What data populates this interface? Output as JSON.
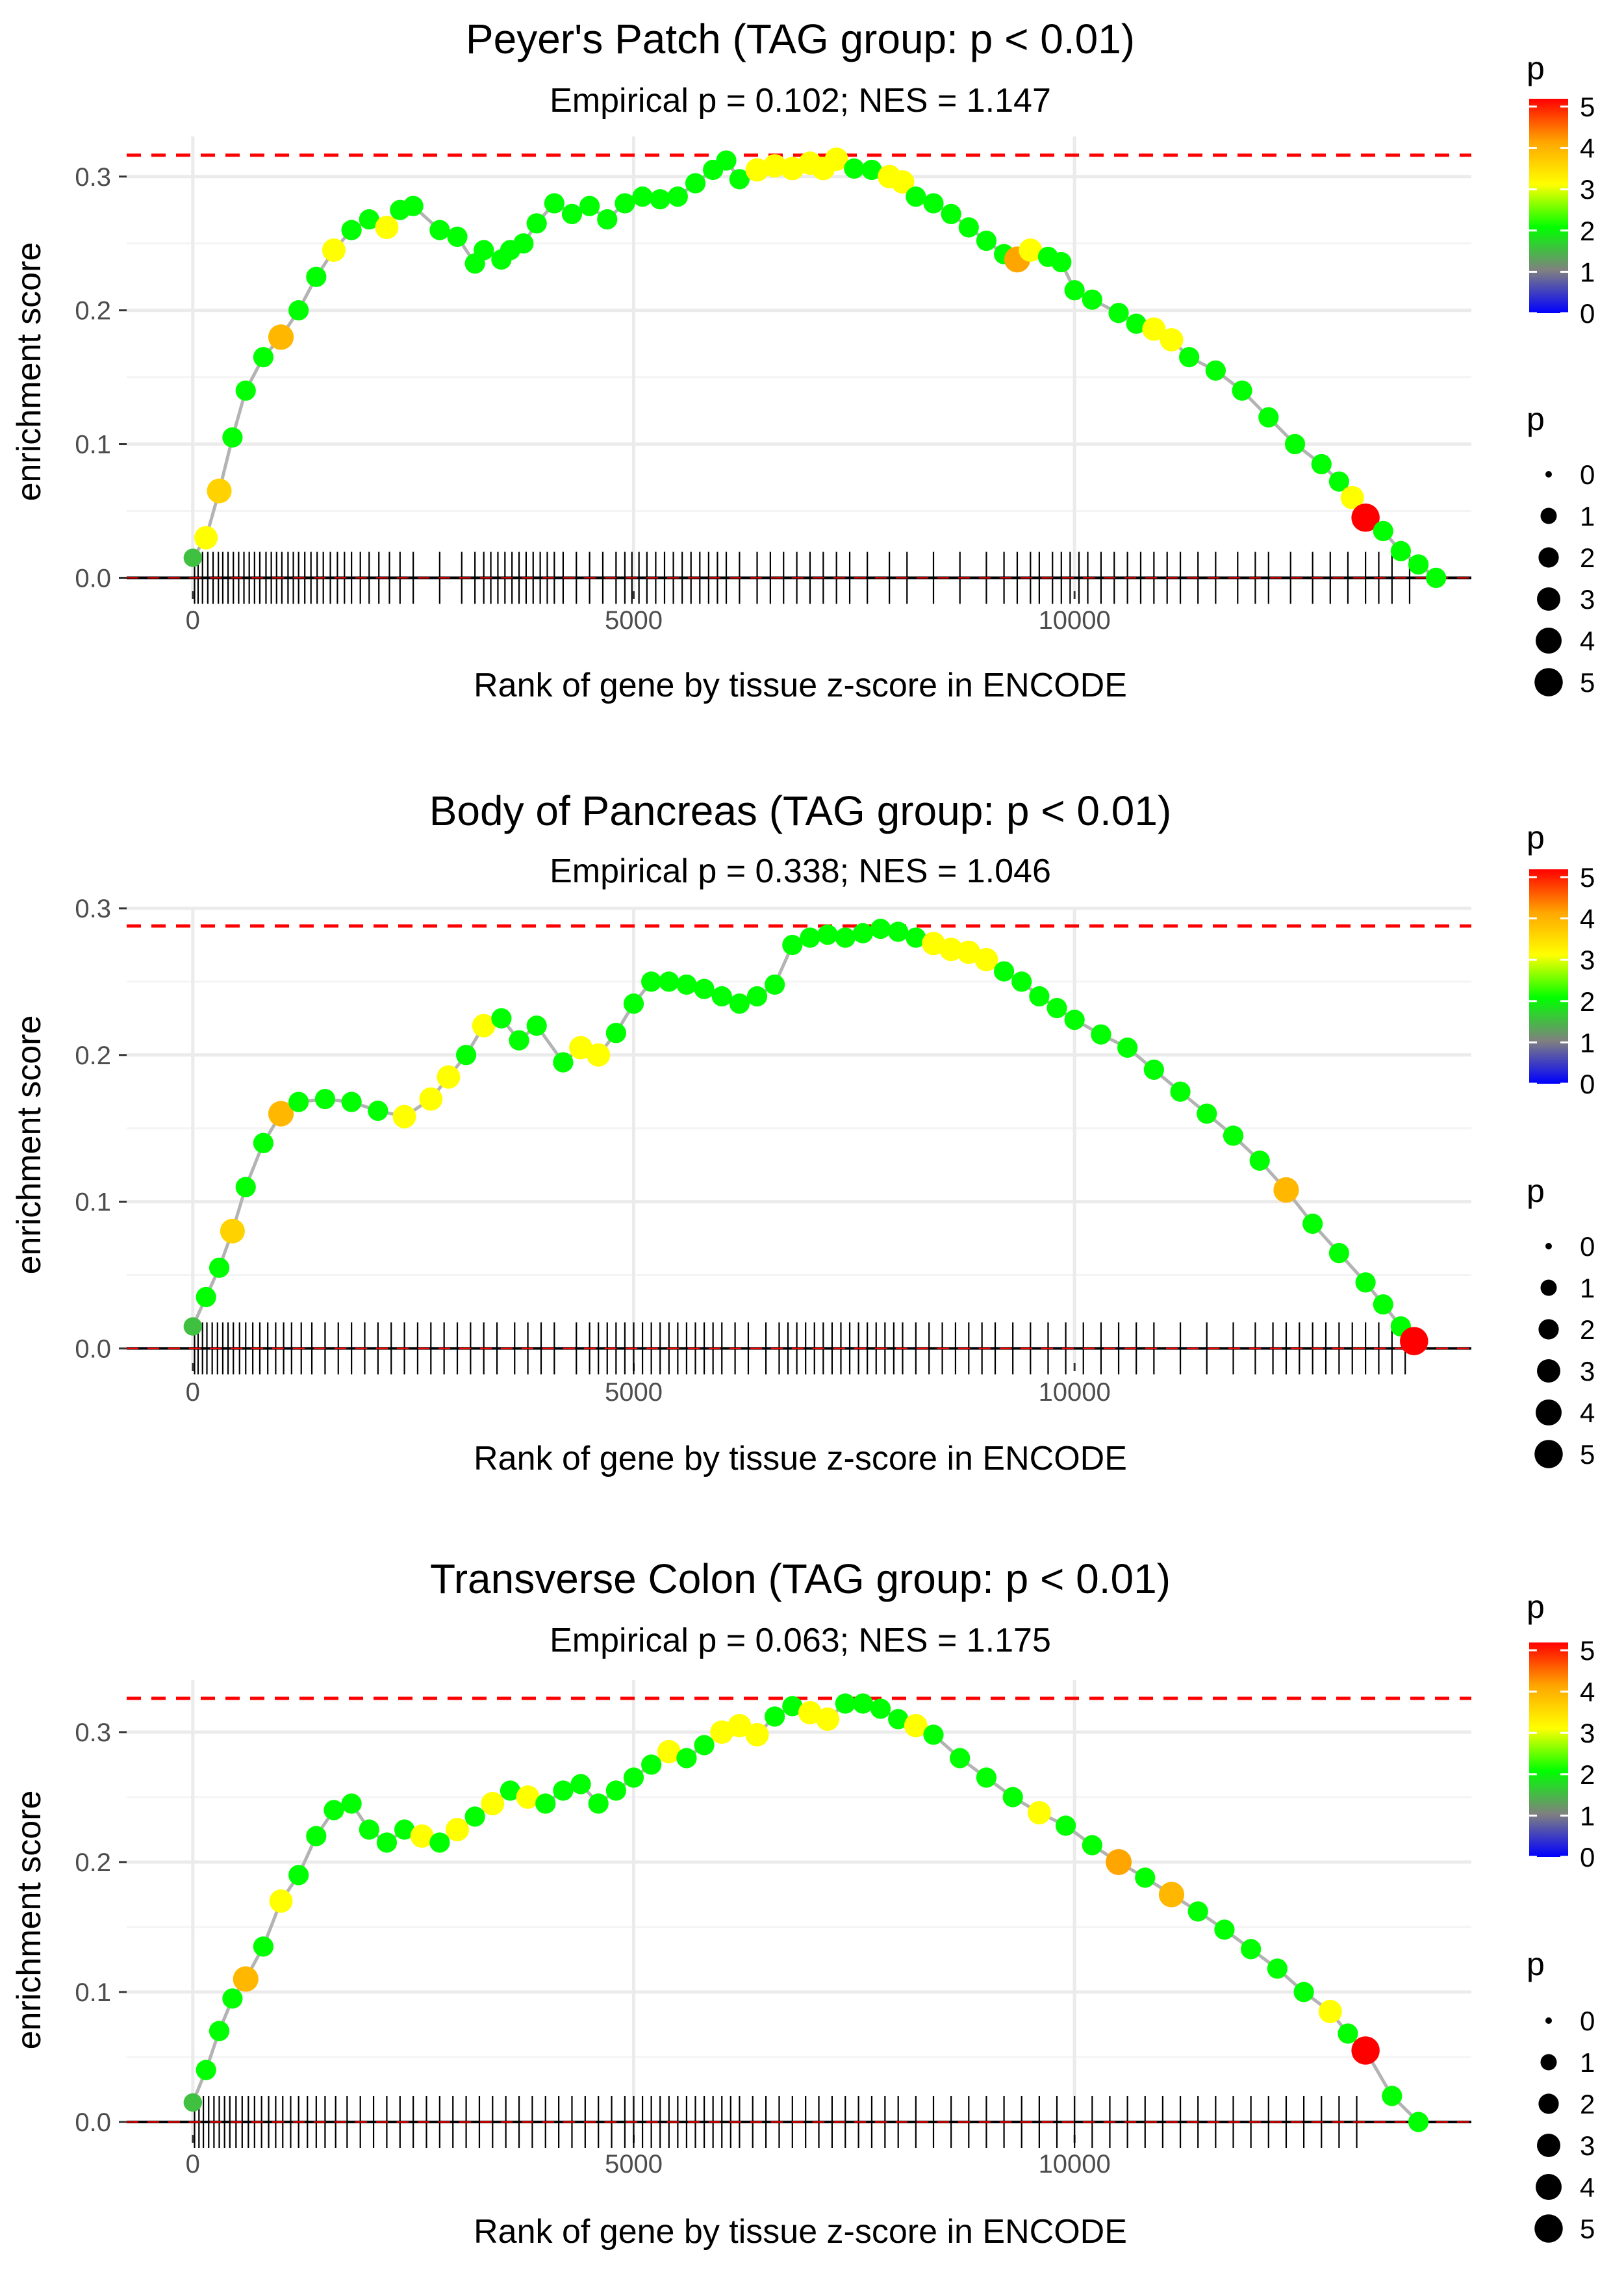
{
  "figure": {
    "xlabel": "Rank of gene by tissue z-score in ENCODE",
    "ylabel": "enrichment score",
    "color_legend": {
      "title": "p",
      "ticks": [
        "0",
        "1",
        "2",
        "3",
        "4",
        "5"
      ],
      "stops": [
        "#0000ff",
        "#808080",
        "#00ff00",
        "#ffff00",
        "#ffa500",
        "#ff0000"
      ]
    },
    "size_legend": {
      "title": "p",
      "labels": [
        "0",
        "1",
        "2",
        "3",
        "4",
        "5"
      ]
    },
    "colors": {
      "line": "#b3b3b3",
      "threshold": "#ff0000",
      "rug": "#000000",
      "grid": "#ebebeb"
    }
  },
  "chart_data": [
    {
      "type": "line",
      "title": "Peyer's Patch (TAG group: p < 0.01)",
      "subtitle": "Empirical p = 0.102; NES = 1.147",
      "xlabel": "Rank of gene by tissue z-score in ENCODE",
      "ylabel": "enrichment score",
      "xlim": [
        -750,
        14500
      ],
      "ylim": [
        -0.01,
        0.33
      ],
      "xticks": [
        0,
        5000,
        10000
      ],
      "xtick_labels": [
        "0",
        "5000",
        "10000"
      ],
      "yticks": [
        0.0,
        0.1,
        0.2,
        0.3
      ],
      "ytick_labels": [
        "0.0",
        "0.1",
        "0.2",
        "0.3"
      ],
      "max_es": 0.316,
      "x": [
        0,
        150,
        300,
        450,
        600,
        800,
        1000,
        1200,
        1400,
        1600,
        1800,
        2000,
        2200,
        2350,
        2500,
        2800,
        3000,
        3200,
        3300,
        3500,
        3600,
        3750,
        3900,
        4100,
        4300,
        4500,
        4700,
        4900,
        5100,
        5300,
        5500,
        5700,
        5900,
        6050,
        6200,
        6400,
        6600,
        6800,
        7000,
        7150,
        7300,
        7500,
        7700,
        7900,
        8050,
        8200,
        8400,
        8600,
        8800,
        9000,
        9200,
        9350,
        9500,
        9700,
        9850,
        10000,
        10200,
        10500,
        10700,
        10900,
        11100,
        11300,
        11600,
        11900,
        12200,
        12500,
        12800,
        13000,
        13150,
        13300,
        13500,
        13700,
        13900,
        14100
      ],
      "es": [
        0.015,
        0.03,
        0.065,
        0.105,
        0.14,
        0.165,
        0.18,
        0.2,
        0.225,
        0.245,
        0.26,
        0.268,
        0.262,
        0.275,
        0.278,
        0.26,
        0.255,
        0.235,
        0.245,
        0.238,
        0.245,
        0.25,
        0.265,
        0.28,
        0.272,
        0.278,
        0.268,
        0.28,
        0.285,
        0.283,
        0.285,
        0.295,
        0.305,
        0.312,
        0.298,
        0.305,
        0.308,
        0.306,
        0.31,
        0.306,
        0.313,
        0.306,
        0.305,
        0.3,
        0.296,
        0.285,
        0.28,
        0.272,
        0.262,
        0.252,
        0.242,
        0.238,
        0.245,
        0.24,
        0.236,
        0.215,
        0.208,
        0.198,
        0.19,
        0.186,
        0.178,
        0.165,
        0.155,
        0.14,
        0.12,
        0.1,
        0.085,
        0.072,
        0.06,
        0.045,
        0.035,
        0.02,
        0.01,
        0.0
      ],
      "p": [
        1.5,
        3.0,
        3.5,
        2.0,
        2.0,
        2.0,
        3.8,
        2.0,
        2.0,
        3.0,
        2.0,
        2.0,
        3.0,
        2.0,
        2.0,
        2.0,
        2.0,
        2.0,
        2.0,
        2.0,
        2.0,
        2.0,
        2.0,
        2.0,
        2.0,
        2.0,
        2.0,
        2.0,
        2.0,
        2.0,
        2.0,
        2.0,
        2.0,
        2.0,
        2.0,
        3.0,
        3.0,
        3.0,
        3.0,
        3.0,
        3.0,
        2.0,
        2.0,
        3.0,
        3.0,
        2.0,
        2.0,
        2.0,
        2.0,
        2.0,
        2.0,
        4.0,
        3.0,
        2.0,
        2.0,
        2.0,
        2.0,
        2.0,
        2.0,
        3.0,
        3.0,
        2.0,
        2.0,
        2.0,
        2.0,
        2.0,
        2.0,
        2.0,
        3.0,
        5.0,
        2.0,
        2.0,
        2.0,
        2.0
      ],
      "rug": [
        20,
        60,
        110,
        170,
        230,
        290,
        340,
        400,
        460,
        520,
        580,
        640,
        700,
        760,
        830,
        890,
        950,
        1010,
        1080,
        1140,
        1200,
        1270,
        1340,
        1410,
        1480,
        1560,
        1640,
        1720,
        1800,
        1900,
        2000,
        2110,
        2230,
        2350,
        2500,
        2800,
        3050,
        3200,
        3300,
        3380,
        3460,
        3540,
        3620,
        3700,
        3780,
        3860,
        3940,
        4020,
        4100,
        4200,
        4350,
        4500,
        4650,
        4800,
        4900,
        4980,
        5060,
        5150,
        5250,
        5350,
        5450,
        5550,
        5650,
        5750,
        5850,
        5950,
        6050,
        6200,
        6400,
        6550,
        6700,
        6850,
        7000,
        7150,
        7300,
        7450,
        7650,
        7900,
        8100,
        8400,
        8700,
        9000,
        9200,
        9350,
        9500,
        9600,
        9750,
        9850,
        9950,
        10050,
        10150,
        10300,
        10450,
        10600,
        10750,
        10900,
        11050,
        11200,
        11400,
        11600,
        11850,
        12050,
        12200,
        12450,
        12700,
        12900,
        13100,
        13300,
        13450,
        13600,
        13800
      ]
    },
    {
      "type": "line",
      "title": "Body of Pancreas (TAG group: p < 0.01)",
      "subtitle": "Empirical p = 0.338; NES = 1.046",
      "xlabel": "Rank of gene by tissue z-score in ENCODE",
      "ylabel": "enrichment score",
      "xlim": [
        -750,
        14500
      ],
      "ylim": [
        -0.01,
        0.3
      ],
      "xticks": [
        0,
        5000,
        10000
      ],
      "xtick_labels": [
        "0",
        "5000",
        "10000"
      ],
      "yticks": [
        0.0,
        0.1,
        0.2,
        0.3
      ],
      "ytick_labels": [
        "0.0",
        "0.1",
        "0.2",
        "0.3"
      ],
      "max_es": 0.288,
      "x": [
        0,
        150,
        300,
        450,
        600,
        800,
        1000,
        1200,
        1500,
        1800,
        2100,
        2400,
        2700,
        2900,
        3100,
        3300,
        3500,
        3700,
        3900,
        4200,
        4400,
        4600,
        4800,
        5000,
        5200,
        5400,
        5600,
        5800,
        6000,
        6200,
        6400,
        6600,
        6800,
        7000,
        7200,
        7400,
        7600,
        7800,
        8000,
        8200,
        8400,
        8600,
        8800,
        9000,
        9200,
        9400,
        9600,
        9800,
        10000,
        10300,
        10600,
        10900,
        11200,
        11500,
        11800,
        12100,
        12400,
        12700,
        13000,
        13300,
        13500,
        13700,
        13850
      ],
      "es": [
        0.015,
        0.035,
        0.055,
        0.08,
        0.11,
        0.14,
        0.16,
        0.168,
        0.17,
        0.168,
        0.162,
        0.158,
        0.17,
        0.185,
        0.2,
        0.22,
        0.225,
        0.21,
        0.22,
        0.195,
        0.205,
        0.2,
        0.215,
        0.235,
        0.25,
        0.25,
        0.248,
        0.245,
        0.24,
        0.235,
        0.24,
        0.248,
        0.275,
        0.28,
        0.282,
        0.28,
        0.283,
        0.286,
        0.284,
        0.28,
        0.276,
        0.272,
        0.27,
        0.265,
        0.257,
        0.25,
        0.24,
        0.232,
        0.224,
        0.214,
        0.205,
        0.19,
        0.175,
        0.16,
        0.145,
        0.128,
        0.108,
        0.085,
        0.065,
        0.045,
        0.03,
        0.015,
        0.005
      ],
      "p": [
        1.5,
        2.0,
        2.0,
        3.5,
        2.0,
        2.0,
        3.8,
        2.0,
        2.0,
        2.0,
        2.0,
        3.0,
        3.0,
        3.0,
        2.0,
        3.0,
        2.0,
        2.0,
        2.0,
        2.0,
        3.0,
        3.0,
        2.0,
        2.0,
        2.0,
        2.0,
        2.0,
        2.0,
        2.0,
        2.0,
        2.0,
        2.0,
        2.0,
        2.0,
        2.0,
        2.0,
        2.0,
        2.0,
        2.0,
        2.0,
        3.0,
        3.0,
        3.0,
        3.0,
        2.0,
        2.0,
        2.0,
        2.0,
        2.0,
        2.0,
        2.0,
        2.0,
        2.0,
        2.0,
        2.0,
        2.0,
        3.8,
        2.0,
        2.0,
        2.0,
        2.0,
        2.0,
        5.0
      ],
      "rug": [
        20,
        60,
        110,
        160,
        220,
        280,
        340,
        400,
        460,
        530,
        600,
        680,
        760,
        850,
        940,
        1030,
        1120,
        1230,
        1350,
        1500,
        1650,
        1800,
        1950,
        2100,
        2250,
        2400,
        2550,
        2700,
        2850,
        3000,
        3150,
        3300,
        3450,
        3650,
        3800,
        3950,
        4100,
        4350,
        4500,
        4600,
        4700,
        4800,
        4900,
        5000,
        5100,
        5200,
        5300,
        5400,
        5500,
        5600,
        5700,
        5800,
        5900,
        6000,
        6150,
        6300,
        6500,
        6650,
        6750,
        6850,
        6950,
        7050,
        7150,
        7250,
        7350,
        7450,
        7550,
        7650,
        7750,
        7850,
        7950,
        8050,
        8200,
        8350,
        8500,
        8650,
        8800,
        8950,
        9100,
        9300,
        9500,
        9700,
        9900,
        10100,
        10300,
        10500,
        10700,
        10900,
        11200,
        11500,
        11800,
        12050,
        12250,
        12400,
        12550,
        12700,
        12850,
        13000,
        13150,
        13300,
        13450,
        13600,
        13750
      ]
    },
    {
      "type": "line",
      "title": "Transverse Colon (TAG group: p < 0.01)",
      "subtitle": "Empirical p = 0.063; NES = 1.175",
      "xlabel": "Rank of gene by tissue z-score in ENCODE",
      "ylabel": "enrichment score",
      "xlim": [
        -750,
        14500
      ],
      "ylim": [
        -0.01,
        0.34
      ],
      "xticks": [
        0,
        5000,
        10000
      ],
      "xtick_labels": [
        "0",
        "5000",
        "10000"
      ],
      "yticks": [
        0.0,
        0.1,
        0.2,
        0.3
      ],
      "ytick_labels": [
        "0.0",
        "0.1",
        "0.2",
        "0.3"
      ],
      "max_es": 0.326,
      "x": [
        0,
        150,
        300,
        450,
        600,
        800,
        1000,
        1200,
        1400,
        1600,
        1800,
        2000,
        2200,
        2400,
        2600,
        2800,
        3000,
        3200,
        3400,
        3600,
        3800,
        4000,
        4200,
        4400,
        4600,
        4800,
        5000,
        5200,
        5400,
        5600,
        5800,
        6000,
        6200,
        6400,
        6600,
        6800,
        7000,
        7200,
        7400,
        7600,
        7800,
        8000,
        8200,
        8400,
        8700,
        9000,
        9300,
        9600,
        9900,
        10200,
        10500,
        10800,
        11100,
        11400,
        11700,
        12000,
        12300,
        12600,
        12900,
        13100,
        13300,
        13600,
        13900
      ],
      "es": [
        0.015,
        0.04,
        0.07,
        0.095,
        0.11,
        0.135,
        0.17,
        0.19,
        0.22,
        0.24,
        0.245,
        0.225,
        0.215,
        0.225,
        0.22,
        0.215,
        0.225,
        0.235,
        0.245,
        0.255,
        0.25,
        0.245,
        0.255,
        0.26,
        0.245,
        0.255,
        0.265,
        0.275,
        0.285,
        0.28,
        0.29,
        0.3,
        0.305,
        0.298,
        0.312,
        0.32,
        0.315,
        0.31,
        0.322,
        0.322,
        0.318,
        0.31,
        0.305,
        0.298,
        0.28,
        0.265,
        0.25,
        0.238,
        0.228,
        0.213,
        0.2,
        0.188,
        0.175,
        0.162,
        0.148,
        0.133,
        0.118,
        0.1,
        0.085,
        0.068,
        0.055,
        0.02,
        0.0
      ],
      "p": [
        1.5,
        2.0,
        2.0,
        2.0,
        3.8,
        2.0,
        3.0,
        2.0,
        2.0,
        2.0,
        2.0,
        2.0,
        2.0,
        2.0,
        3.0,
        2.0,
        3.0,
        2.0,
        3.0,
        2.0,
        3.0,
        2.0,
        2.0,
        2.0,
        2.0,
        2.0,
        2.0,
        2.0,
        3.0,
        2.0,
        2.0,
        3.0,
        3.0,
        3.0,
        2.0,
        2.0,
        3.0,
        3.0,
        2.0,
        2.0,
        2.0,
        2.0,
        3.0,
        2.0,
        2.0,
        2.0,
        2.0,
        3.0,
        2.0,
        2.0,
        4.0,
        2.0,
        3.8,
        2.0,
        2.0,
        2.0,
        2.0,
        2.0,
        3.0,
        2.0,
        5.0,
        2.0,
        2.0
      ],
      "rug": [
        20,
        70,
        120,
        180,
        240,
        300,
        360,
        420,
        490,
        560,
        630,
        700,
        780,
        860,
        940,
        1020,
        1110,
        1200,
        1300,
        1400,
        1500,
        1620,
        1750,
        1900,
        2050,
        2200,
        2350,
        2500,
        2650,
        2800,
        2950,
        3100,
        3250,
        3400,
        3550,
        3700,
        3850,
        4000,
        4150,
        4300,
        4450,
        4600,
        4750,
        4900,
        5000,
        5100,
        5200,
        5300,
        5400,
        5500,
        5600,
        5700,
        5800,
        5900,
        6000,
        6100,
        6200,
        6350,
        6500,
        6650,
        6800,
        6950,
        7100,
        7250,
        7400,
        7550,
        7700,
        7850,
        8000,
        8200,
        8400,
        8600,
        8800,
        9000,
        9200,
        9400,
        9600,
        9800,
        10000,
        10200,
        10400,
        10600,
        10800,
        11000,
        11200,
        11400,
        11600,
        11800,
        12000,
        12200,
        12400,
        12600,
        12800,
        13000,
        13200
      ]
    }
  ]
}
